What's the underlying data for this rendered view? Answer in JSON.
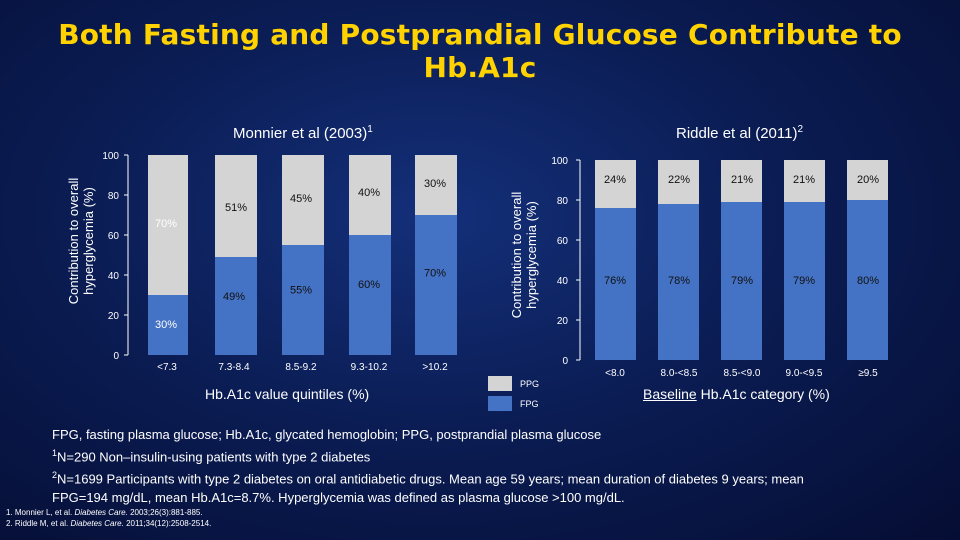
{
  "title": "Both Fasting and Postprandial Glucose Contribute to Hb.A1c",
  "colors": {
    "title": "#ffd200",
    "fpg": "#4472c4",
    "ppg": "#d4d4d4",
    "background": "#0b1d55"
  },
  "chart_data": [
    {
      "type": "bar",
      "stacked": true,
      "title": "Monnier et al (2003)",
      "title_sup": "1",
      "ylabel_line1": "Contribution to overall",
      "ylabel_line2": "hyperglycemia (%)",
      "xlabel": "Hb.A1c value quintiles (%)",
      "ylim": [
        0,
        100
      ],
      "yticks": [
        "0",
        "20",
        "40",
        "60",
        "80",
        "100"
      ],
      "categories": [
        "<7.3",
        "7.3-8.4",
        "8.5-9.2",
        "9.3-10.2",
        ">10.2"
      ],
      "series": [
        {
          "name": "FPG",
          "values": [
            30,
            49,
            55,
            60,
            70
          ],
          "labels": [
            "30%",
            "49%",
            "55%",
            "60%",
            "70%"
          ]
        },
        {
          "name": "PPG",
          "values": [
            70,
            51,
            45,
            40,
            30
          ],
          "labels": [
            "70%",
            "51%",
            "45%",
            "40%",
            "30%"
          ]
        }
      ]
    },
    {
      "type": "bar",
      "stacked": true,
      "title": "Riddle et al (2011)",
      "title_sup": "2",
      "ylabel_line1": "Contribution to overall",
      "ylabel_line2": "hyperglycemia (%)",
      "xlabel_underlined": "Baseline",
      "xlabel_rest": " Hb.A1c category (%)",
      "ylim": [
        0,
        100
      ],
      "yticks": [
        "0",
        "20",
        "40",
        "60",
        "80",
        "100"
      ],
      "categories": [
        "<8.0",
        "8.0-<8.5",
        "8.5-<9.0",
        "9.0-<9.5",
        "≥9.5"
      ],
      "series": [
        {
          "name": "FPG",
          "values": [
            76,
            78,
            79,
            79,
            80
          ],
          "labels": [
            "76%",
            "78%",
            "79%",
            "79%",
            "80%"
          ]
        },
        {
          "name": "PPG",
          "values": [
            24,
            22,
            21,
            21,
            20
          ],
          "labels": [
            "24%",
            "22%",
            "21%",
            "21%",
            "20%"
          ]
        }
      ]
    }
  ],
  "legend": {
    "ppg": "PPG",
    "fpg": "FPG"
  },
  "footnotes": {
    "line1": "FPG, fasting plasma glucose; Hb.A1c, glycated hemoglobin; PPG, postprandial plasma glucose",
    "line2_sup": "1",
    "line2": "N=290 Non–insulin-using patients with type 2 diabetes",
    "line3_sup": "2",
    "line3": "N=1699 Participants with type 2 diabetes on oral antidiabetic drugs. Mean age 59 years; mean duration of diabetes 9 years; mean",
    "line4": "FPG=194 mg/dL, mean Hb.A1c=8.7%. Hyperglycemia was defined as plasma glucose >100 mg/dL."
  },
  "references": {
    "ref1_a": "1. Monnier L, et al. ",
    "ref1_journal": "Diabetes Care.",
    "ref1_b": " 2003;26(3):881-885.",
    "ref2_a": "2. Riddle M, et al. ",
    "ref2_journal": "Diabetes Care.",
    "ref2_b": " 2011;34(12):2508-2514."
  }
}
